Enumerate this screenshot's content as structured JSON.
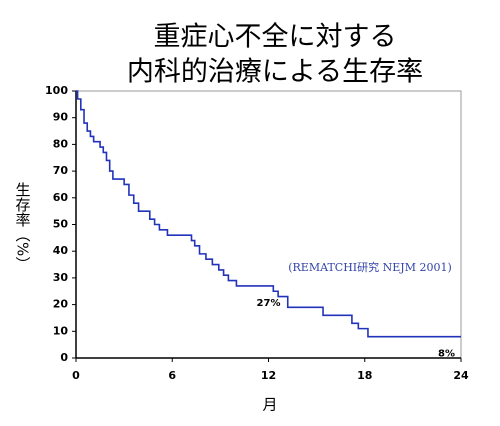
{
  "chart_data": {
    "type": "step",
    "title": "重症心不全に対する",
    "subtitle": "内科的治療による生存率",
    "x_label": "月",
    "y_label": "生存率（%）",
    "annotation": "(REMATCHI研究 NEJM 2001)",
    "x": [
      0,
      0.1,
      0.3,
      0.5,
      0.7,
      0.9,
      1.1,
      1.5,
      1.7,
      1.9,
      2.1,
      2.3,
      3.0,
      3.3,
      3.6,
      3.9,
      4.6,
      4.9,
      5.2,
      5.7,
      7.2,
      7.4,
      7.7,
      8.1,
      8.5,
      8.9,
      9.2,
      9.5,
      10.0,
      12.3,
      12.6,
      13.2,
      15.4,
      17.2,
      17.6,
      18.2,
      24
    ],
    "values": [
      100,
      97,
      93,
      88,
      85,
      83,
      81,
      79,
      77,
      74,
      70,
      67,
      65,
      61,
      58,
      55,
      52,
      50,
      48,
      46,
      44,
      42,
      39,
      37,
      35,
      33,
      31,
      29,
      27,
      25,
      23,
      19,
      16,
      13,
      11,
      8,
      8
    ],
    "color": "#2233bb",
    "point_labels": [
      {
        "x": 12,
        "y": 27,
        "label": "27%"
      },
      {
        "x": 24,
        "y": 8,
        "label": "8%"
      }
    ],
    "xlim": [
      0,
      24
    ],
    "xticks": [
      0,
      6,
      12,
      18,
      24
    ],
    "ylim": [
      0,
      100
    ],
    "yticks": [
      0,
      10,
      20,
      30,
      40,
      50,
      60,
      70,
      80,
      90,
      100
    ]
  }
}
